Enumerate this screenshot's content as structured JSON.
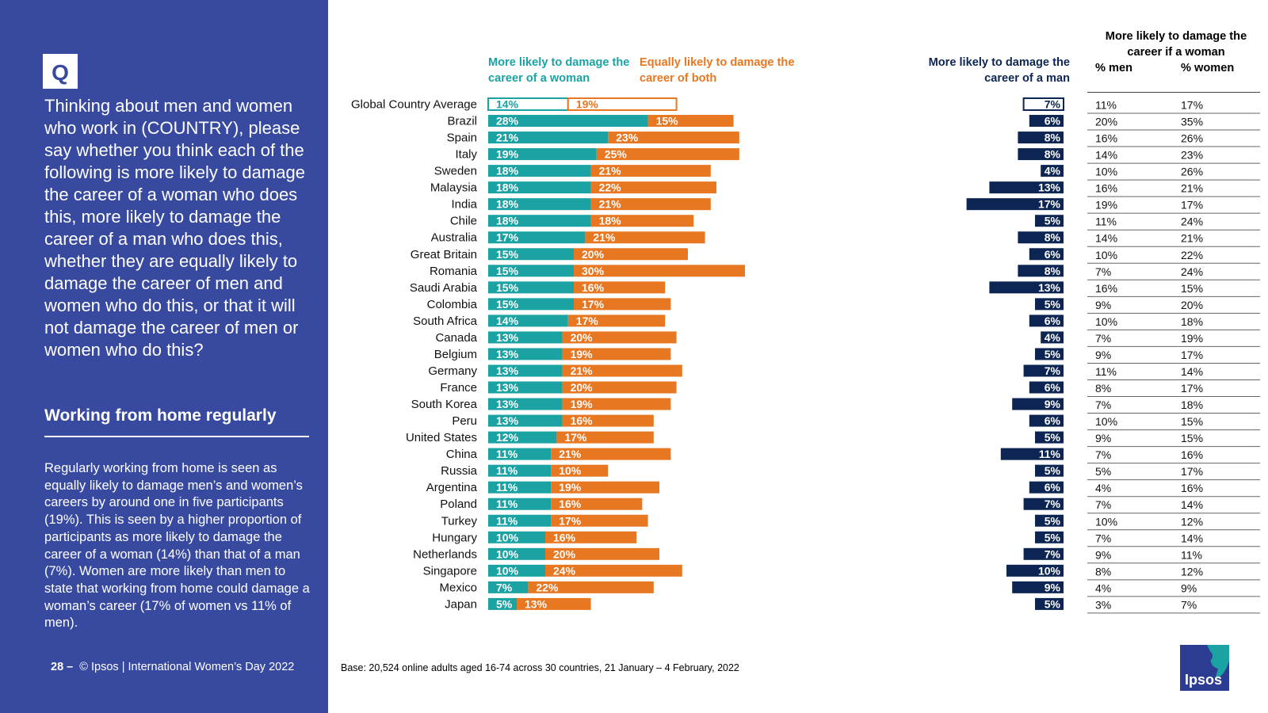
{
  "sidebar": {
    "q_label": "Q",
    "question": "Thinking about men and women who work in (COUNTRY), please say whether you think each of the following is more likely to damage the career of a woman who does this, more likely to damage the career of a man who does this, whether they are equally likely to damage the career of men and women who do this, or that it will not damage the career of men or women who do this?",
    "section_title": "Working from home regularly",
    "summary": "Regularly working from home is seen as equally likely to damage men’s and women’s careers by around one in five participants (19%). This is seen by a higher proportion of participants as more likely to damage the career of a woman (14%) than that of a man (7%). Women are more likely than men to state that working from home could damage a woman’s career (17% of women vs 11% of men).",
    "footer_page": "28 –",
    "footer_text": "© Ipsos | International Women’s Day 2022"
  },
  "legend": {
    "woman": "More likely to damage the career of a woman",
    "both": "Equally likely to damage the career of both",
    "man": "More likely to damage the career of a man"
  },
  "table": {
    "title": "More likely to damage the career if a woman",
    "col_men": "% men",
    "col_women": "% women"
  },
  "base_note": "Base: 20,524 online adults aged 16-74 across 30 countries, 21 January – 4 February, 2022",
  "logo": {
    "text": "Ipsos"
  },
  "colors": {
    "woman": "#1ba3a3",
    "both": "#e87722",
    "man": "#0c2552",
    "sidebar": "#3849a0"
  },
  "chart_data": {
    "type": "bar",
    "orientation": "horizontal",
    "stacked": true,
    "categories": [
      "Global Country Average",
      "Brazil",
      "Spain",
      "Italy",
      "Sweden",
      "Malaysia",
      "India",
      "Chile",
      "Australia",
      "Great Britain",
      "Romania",
      "Saudi Arabia",
      "Colombia",
      "South Africa",
      "Canada",
      "Belgium",
      "Germany",
      "France",
      "South Korea",
      "Peru",
      "United States",
      "China",
      "Russia",
      "Argentina",
      "Poland",
      "Turkey",
      "Hungary",
      "Netherlands",
      "Singapore",
      "Mexico",
      "Japan"
    ],
    "series": [
      {
        "name": "More likely to damage the career of a woman",
        "values": [
          14,
          28,
          21,
          19,
          18,
          18,
          18,
          18,
          17,
          15,
          15,
          15,
          15,
          14,
          13,
          13,
          13,
          13,
          13,
          13,
          12,
          11,
          11,
          11,
          11,
          11,
          10,
          10,
          10,
          7,
          5
        ]
      },
      {
        "name": "Equally likely to damage the career of both",
        "values": [
          19,
          15,
          23,
          25,
          21,
          22,
          21,
          18,
          21,
          20,
          30,
          16,
          17,
          17,
          20,
          19,
          21,
          20,
          19,
          16,
          17,
          21,
          10,
          19,
          16,
          17,
          16,
          20,
          24,
          22,
          13
        ]
      },
      {
        "name": "More likely to damage the career of a man",
        "values": [
          7,
          6,
          8,
          8,
          4,
          13,
          17,
          5,
          8,
          6,
          8,
          13,
          5,
          6,
          4,
          5,
          7,
          6,
          9,
          6,
          5,
          11,
          5,
          6,
          7,
          5,
          5,
          7,
          10,
          9,
          5
        ]
      }
    ],
    "highlight_first": true,
    "table": {
      "title": "More likely to damage the career if a woman",
      "men": [
        11,
        20,
        16,
        14,
        10,
        16,
        19,
        11,
        14,
        10,
        7,
        16,
        9,
        10,
        7,
        9,
        11,
        8,
        7,
        10,
        9,
        7,
        5,
        4,
        7,
        10,
        7,
        9,
        8,
        4,
        3
      ],
      "women": [
        17,
        35,
        26,
        23,
        26,
        21,
        17,
        24,
        21,
        22,
        24,
        15,
        20,
        18,
        19,
        17,
        14,
        17,
        18,
        15,
        15,
        16,
        17,
        16,
        14,
        12,
        14,
        11,
        12,
        9,
        7
      ]
    }
  }
}
